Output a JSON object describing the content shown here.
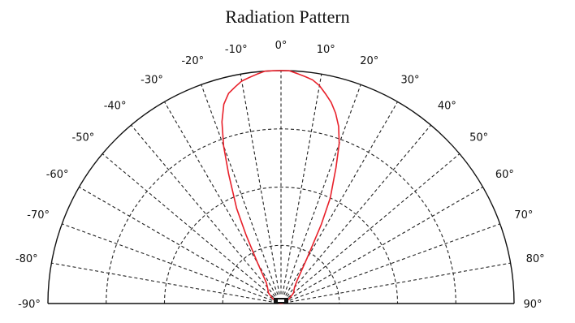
{
  "chart_data": {
    "type": "polar",
    "title": "Radiation Pattern",
    "angle_range": [
      -90,
      90
    ],
    "radial_range": [
      0,
      1
    ],
    "grid": true,
    "angle_tick_labels": [
      {
        "angle": -90,
        "label": "-90°"
      },
      {
        "angle": -80,
        "label": "-80°"
      },
      {
        "angle": -70,
        "label": "-70°"
      },
      {
        "angle": -60,
        "label": "-60°"
      },
      {
        "angle": -50,
        "label": "-50°"
      },
      {
        "angle": -40,
        "label": "-40°"
      },
      {
        "angle": -30,
        "label": "-30°"
      },
      {
        "angle": -20,
        "label": "-20°"
      },
      {
        "angle": -10,
        "label": "-10°"
      },
      {
        "angle": 0,
        "label": "0°"
      },
      {
        "angle": 10,
        "label": "10°"
      },
      {
        "angle": 20,
        "label": "20°"
      },
      {
        "angle": 30,
        "label": "30°"
      },
      {
        "angle": 40,
        "label": "40°"
      },
      {
        "angle": 50,
        "label": "50°"
      },
      {
        "angle": 60,
        "label": "60°"
      },
      {
        "angle": 70,
        "label": "70°"
      },
      {
        "angle": 80,
        "label": "80°"
      },
      {
        "angle": 90,
        "label": "90°"
      }
    ],
    "series": [
      {
        "color": "#e8202a",
        "points": [
          {
            "angle": -90,
            "r": 0.0
          },
          {
            "angle": -80,
            "r": 0.01
          },
          {
            "angle": -70,
            "r": 0.02
          },
          {
            "angle": -60,
            "r": 0.04
          },
          {
            "angle": -50,
            "r": 0.07
          },
          {
            "angle": -40,
            "r": 0.09
          },
          {
            "angle": -35,
            "r": 0.11
          },
          {
            "angle": -30,
            "r": 0.2
          },
          {
            "angle": -27,
            "r": 0.33
          },
          {
            "angle": -25,
            "r": 0.45
          },
          {
            "angle": -22,
            "r": 0.6
          },
          {
            "angle": -20,
            "r": 0.72
          },
          {
            "angle": -18,
            "r": 0.82
          },
          {
            "angle": -16,
            "r": 0.89
          },
          {
            "angle": -14,
            "r": 0.93
          },
          {
            "angle": -12,
            "r": 0.95
          },
          {
            "angle": -10,
            "r": 0.97
          },
          {
            "angle": -8,
            "r": 0.98
          },
          {
            "angle": -6,
            "r": 0.99
          },
          {
            "angle": -4,
            "r": 1.0
          },
          {
            "angle": -2,
            "r": 1.0
          },
          {
            "angle": 0,
            "r": 1.0
          },
          {
            "angle": 2,
            "r": 1.0
          },
          {
            "angle": 4,
            "r": 0.99
          },
          {
            "angle": 6,
            "r": 0.98
          },
          {
            "angle": 8,
            "r": 0.97
          },
          {
            "angle": 10,
            "r": 0.95
          },
          {
            "angle": 12,
            "r": 0.92
          },
          {
            "angle": 14,
            "r": 0.89
          },
          {
            "angle": 16,
            "r": 0.85
          },
          {
            "angle": 18,
            "r": 0.8
          },
          {
            "angle": 20,
            "r": 0.73
          },
          {
            "angle": 22,
            "r": 0.63
          },
          {
            "angle": 25,
            "r": 0.5
          },
          {
            "angle": 27,
            "r": 0.38
          },
          {
            "angle": 30,
            "r": 0.22
          },
          {
            "angle": 35,
            "r": 0.12
          },
          {
            "angle": 40,
            "r": 0.09
          },
          {
            "angle": 50,
            "r": 0.07
          },
          {
            "angle": 60,
            "r": 0.04
          },
          {
            "angle": 70,
            "r": 0.02
          },
          {
            "angle": 80,
            "r": 0.01
          },
          {
            "angle": 90,
            "r": 0.0
          }
        ]
      }
    ]
  }
}
